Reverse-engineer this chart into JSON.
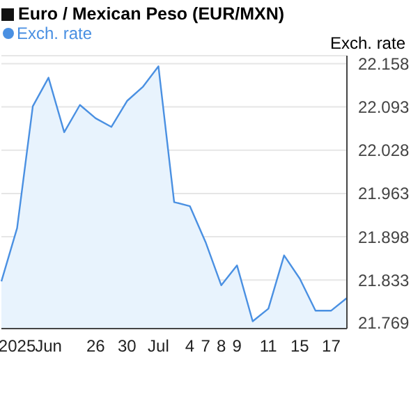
{
  "chart_data": {
    "type": "area",
    "title": "Euro / Mexican Peso (EUR/MXN)",
    "ylabel": "Exch. rate",
    "categories": [
      null,
      "2025",
      null,
      "Jun",
      null,
      null,
      "26",
      null,
      "30",
      null,
      "Jul",
      null,
      "4",
      "7",
      "8",
      "9",
      null,
      "11",
      null,
      "15",
      null,
      "17",
      null
    ],
    "series": [
      {
        "name": "Exch. rate",
        "color": "#4a90e2",
        "values": [
          21.831,
          21.911,
          22.094,
          22.137,
          22.055,
          22.096,
          22.076,
          22.063,
          22.102,
          22.123,
          22.154,
          21.95,
          21.944,
          21.89,
          21.825,
          21.855,
          21.771,
          21.79,
          21.87,
          21.835,
          21.787,
          21.787,
          21.806
        ]
      }
    ],
    "ylim": [
      21.76,
      22.17
    ],
    "yticks": [
      21.769,
      21.833,
      21.898,
      21.963,
      22.028,
      22.093,
      22.158
    ],
    "grid": "y",
    "legend": "top left",
    "marker": "none"
  }
}
